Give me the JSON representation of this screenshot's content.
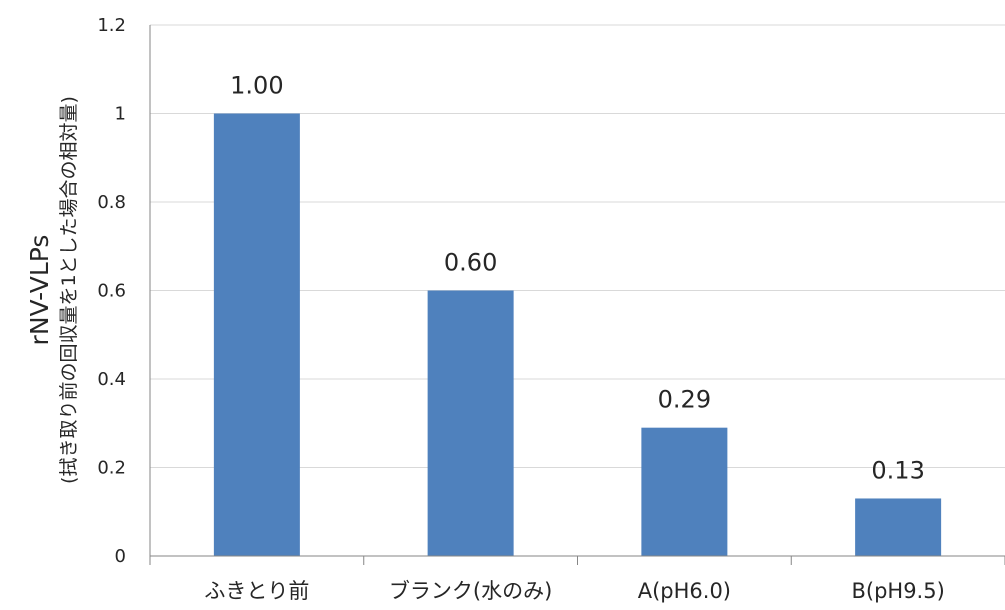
{
  "chart_data": {
    "type": "bar",
    "categories": [
      "ふきとり前",
      "ブランク(水のみ)",
      "A(pH6.0)",
      "B(pH9.5)"
    ],
    "values": [
      1.0,
      0.6,
      0.29,
      0.13
    ],
    "data_labels": [
      "1.00",
      "0.60",
      "0.29",
      "0.13"
    ],
    "title": "",
    "xlabel": "",
    "ylabel": "rNV-VLPs",
    "ylabel_sub": "(拭き取り前の回収量を1とした場合の相対量)",
    "ylim": [
      0,
      1.2
    ],
    "y_ticks": [
      0,
      0.2,
      0.4,
      0.6,
      0.8,
      1,
      1.2
    ],
    "y_tick_labels": [
      "0",
      "0.2",
      "0.4",
      "0.6",
      "0.8",
      "1",
      "1.2"
    ],
    "grid": true,
    "legend": "none",
    "colors": {
      "bar": "#4f81bd",
      "grid": "#d9d9d9",
      "axis": "#868686",
      "text": "#262626"
    }
  }
}
